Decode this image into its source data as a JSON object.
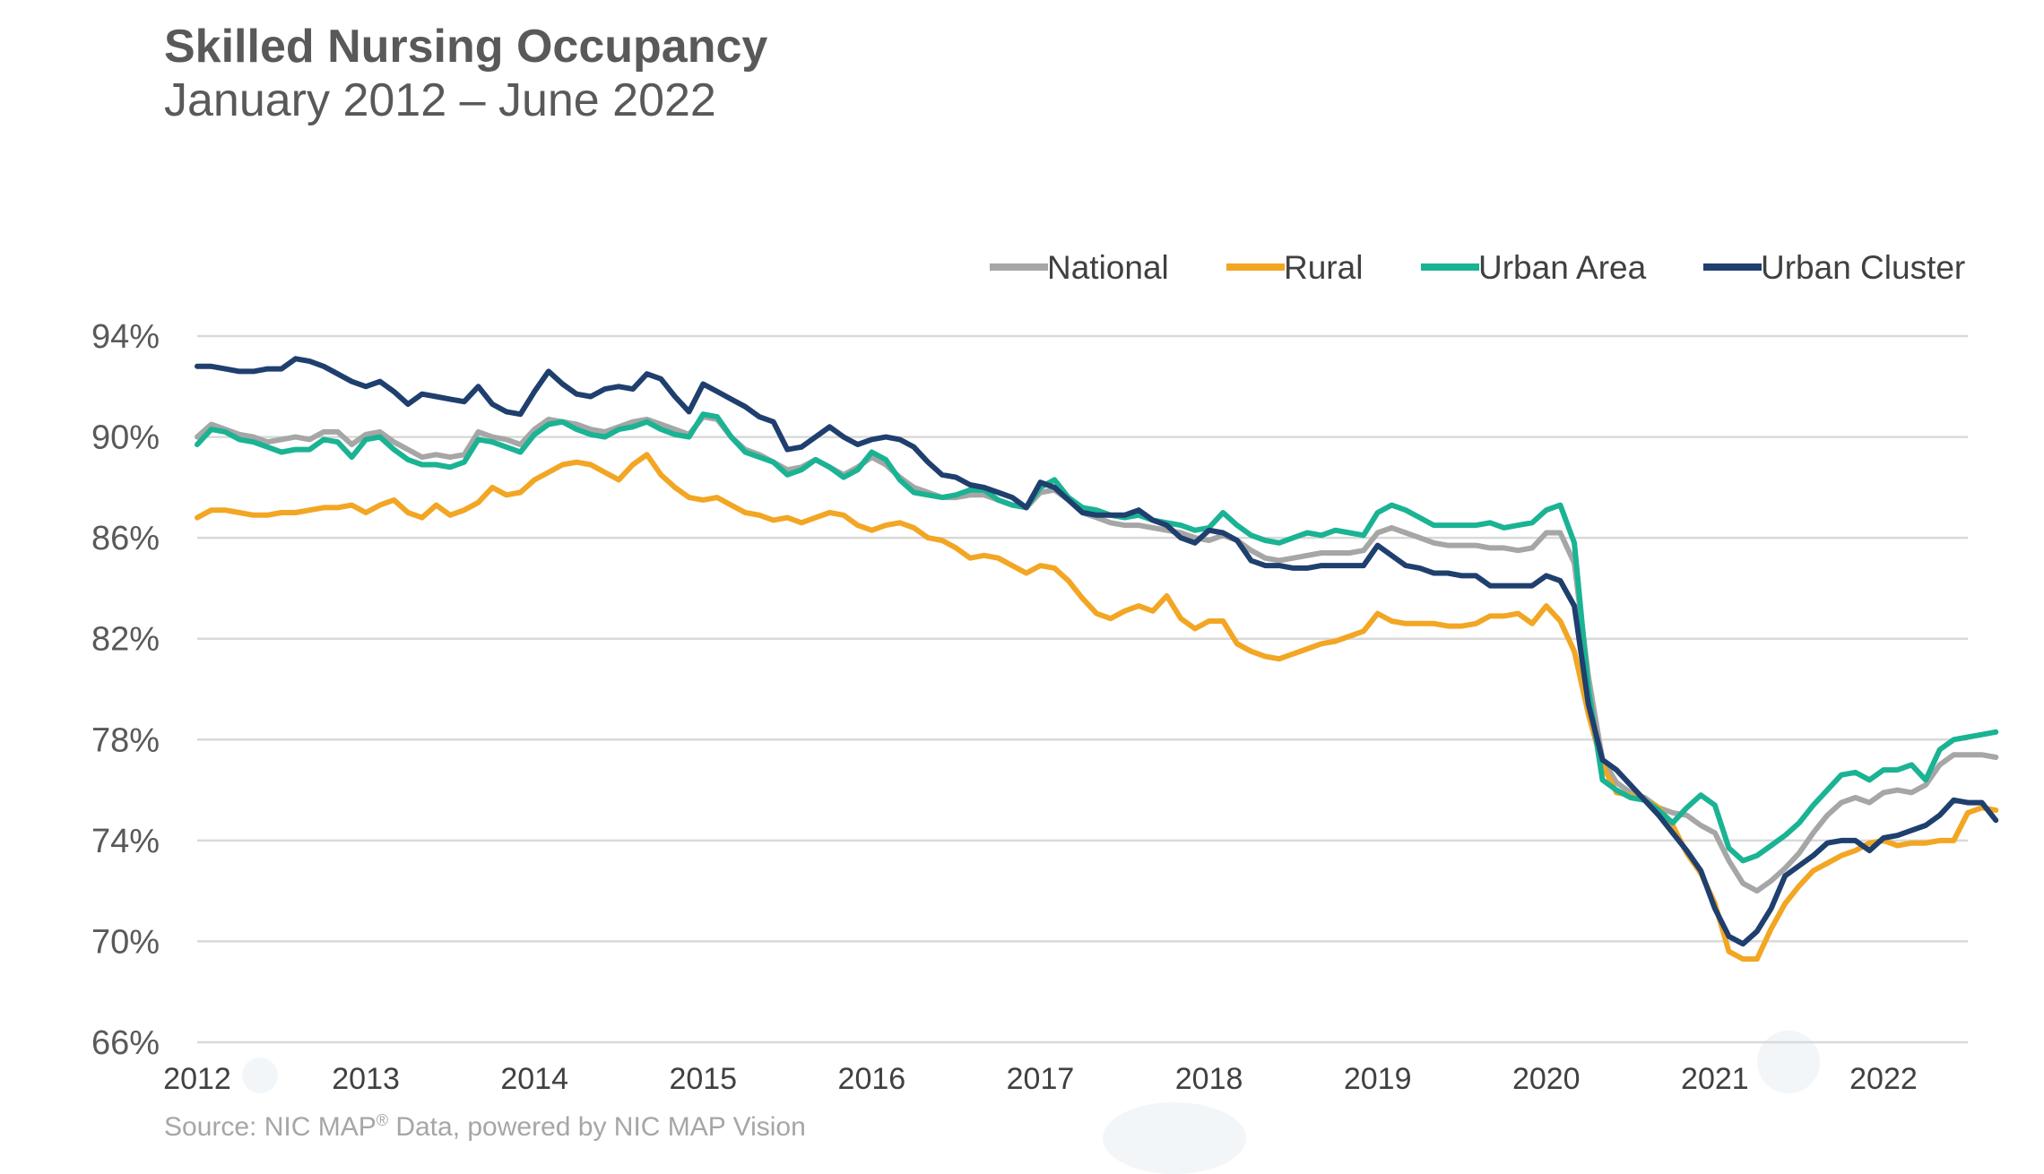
{
  "chart_data": {
    "type": "line",
    "title": "Skilled Nursing Occupancy",
    "subtitle": "January 2012 – June 2022",
    "xlabel": "",
    "ylabel": "",
    "ylim": [
      66,
      94
    ],
    "y_ticks": [
      "66%",
      "70%",
      "74%",
      "78%",
      "82%",
      "86%",
      "90%",
      "94%"
    ],
    "x_ticks": [
      "2012",
      "2013",
      "2014",
      "2015",
      "2016",
      "2017",
      "2018",
      "2019",
      "2020",
      "2021",
      "2022"
    ],
    "legend_position": "top-right",
    "source": "Source: NIC MAP",
    "source_sup": "®",
    "source_rest": " Data, powered by NIC MAP Vision",
    "x_start": 2012.0,
    "x_step": 0.0833333,
    "series": [
      {
        "name": "National",
        "color": "#a6a6a6",
        "values": [
          90.0,
          90.5,
          90.3,
          90.1,
          90.0,
          89.8,
          89.9,
          90.0,
          89.9,
          90.2,
          90.2,
          89.7,
          90.1,
          90.2,
          89.8,
          89.5,
          89.2,
          89.3,
          89.2,
          89.3,
          90.2,
          90.0,
          89.9,
          89.7,
          90.3,
          90.7,
          90.6,
          90.5,
          90.3,
          90.2,
          90.4,
          90.6,
          90.7,
          90.5,
          90.3,
          90.1,
          90.8,
          90.7,
          90.0,
          89.5,
          89.3,
          89.0,
          88.7,
          88.8,
          89.1,
          88.8,
          88.5,
          88.8,
          89.2,
          88.9,
          88.4,
          88.0,
          87.8,
          87.6,
          87.6,
          87.7,
          87.7,
          87.5,
          87.3,
          87.2,
          87.8,
          87.9,
          87.5,
          87.0,
          86.8,
          86.6,
          86.5,
          86.5,
          86.4,
          86.3,
          86.2,
          86.0,
          85.9,
          86.1,
          85.9,
          85.5,
          85.2,
          85.1,
          85.2,
          85.3,
          85.4,
          85.4,
          85.4,
          85.5,
          86.2,
          86.4,
          86.2,
          86.0,
          85.8,
          85.7,
          85.7,
          85.7,
          85.6,
          85.6,
          85.5,
          85.6,
          86.2,
          86.2,
          85.0,
          80.5,
          77.2,
          76.3,
          75.9,
          75.7,
          75.3,
          75.1,
          75.0,
          74.6,
          74.3,
          73.2,
          72.3,
          72.0,
          72.4,
          72.9,
          73.5,
          74.3,
          75.0,
          75.5,
          75.7,
          75.5,
          75.9,
          76.0,
          75.9,
          76.2,
          77.0,
          77.4,
          77.4,
          77.4,
          77.3
        ]
      },
      {
        "name": "Rural",
        "color": "#f2a623",
        "values": [
          86.8,
          87.1,
          87.1,
          87.0,
          86.9,
          86.9,
          87.0,
          87.0,
          87.1,
          87.2,
          87.2,
          87.3,
          87.0,
          87.3,
          87.5,
          87.0,
          86.8,
          87.3,
          86.9,
          87.1,
          87.4,
          88.0,
          87.7,
          87.8,
          88.3,
          88.6,
          88.9,
          89.0,
          88.9,
          88.6,
          88.3,
          88.9,
          89.3,
          88.5,
          88.0,
          87.6,
          87.5,
          87.6,
          87.3,
          87.0,
          86.9,
          86.7,
          86.8,
          86.6,
          86.8,
          87.0,
          86.9,
          86.5,
          86.3,
          86.5,
          86.6,
          86.4,
          86.0,
          85.9,
          85.6,
          85.2,
          85.3,
          85.2,
          84.9,
          84.6,
          84.9,
          84.8,
          84.3,
          83.6,
          83.0,
          82.8,
          83.1,
          83.3,
          83.1,
          83.7,
          82.8,
          82.4,
          82.7,
          82.7,
          81.8,
          81.5,
          81.3,
          81.2,
          81.4,
          81.6,
          81.8,
          81.9,
          82.1,
          82.3,
          83.0,
          82.7,
          82.6,
          82.6,
          82.6,
          82.5,
          82.5,
          82.6,
          82.9,
          82.9,
          83.0,
          82.6,
          83.3,
          82.7,
          81.5,
          79.0,
          77.0,
          75.9,
          75.8,
          75.6,
          75.3,
          74.6,
          73.5,
          72.7,
          71.5,
          69.6,
          69.3,
          69.3,
          70.5,
          71.5,
          72.2,
          72.8,
          73.1,
          73.4,
          73.6,
          73.9,
          74.0,
          73.8,
          73.9,
          73.9,
          74.0,
          74.0,
          75.1,
          75.3,
          75.2
        ]
      },
      {
        "name": "Urban Area",
        "color": "#1ab394",
        "values": [
          89.7,
          90.3,
          90.2,
          89.9,
          89.8,
          89.6,
          89.4,
          89.5,
          89.5,
          89.9,
          89.8,
          89.2,
          89.9,
          90.0,
          89.5,
          89.1,
          88.9,
          88.9,
          88.8,
          89.0,
          89.9,
          89.8,
          89.6,
          89.4,
          90.1,
          90.5,
          90.6,
          90.3,
          90.1,
          90.0,
          90.3,
          90.4,
          90.6,
          90.3,
          90.1,
          90.0,
          90.9,
          90.8,
          90.0,
          89.4,
          89.2,
          89.0,
          88.5,
          88.7,
          89.1,
          88.8,
          88.4,
          88.7,
          89.4,
          89.1,
          88.3,
          87.8,
          87.7,
          87.6,
          87.7,
          87.9,
          87.9,
          87.5,
          87.3,
          87.2,
          88.0,
          88.3,
          87.6,
          87.2,
          87.1,
          86.9,
          86.8,
          86.9,
          86.7,
          86.6,
          86.5,
          86.3,
          86.4,
          87.0,
          86.5,
          86.1,
          85.9,
          85.8,
          86.0,
          86.2,
          86.1,
          86.3,
          86.2,
          86.1,
          87.0,
          87.3,
          87.1,
          86.8,
          86.5,
          86.5,
          86.5,
          86.5,
          86.6,
          86.4,
          86.5,
          86.6,
          87.1,
          87.3,
          85.8,
          80.0,
          76.4,
          76.0,
          75.7,
          75.6,
          75.2,
          74.7,
          75.3,
          75.8,
          75.4,
          73.7,
          73.2,
          73.4,
          73.8,
          74.2,
          74.7,
          75.4,
          76.0,
          76.6,
          76.7,
          76.4,
          76.8,
          76.8,
          77.0,
          76.4,
          77.6,
          78.0,
          78.1,
          78.2,
          78.3
        ]
      },
      {
        "name": "Urban Cluster",
        "color": "#1f3f6e",
        "values": [
          92.8,
          92.8,
          92.7,
          92.6,
          92.6,
          92.7,
          92.7,
          93.1,
          93.0,
          92.8,
          92.5,
          92.2,
          92.0,
          92.2,
          91.8,
          91.3,
          91.7,
          91.6,
          91.5,
          91.4,
          92.0,
          91.3,
          91.0,
          90.9,
          91.8,
          92.6,
          92.1,
          91.7,
          91.6,
          91.9,
          92.0,
          91.9,
          92.5,
          92.3,
          91.6,
          91.0,
          92.1,
          91.8,
          91.5,
          91.2,
          90.8,
          90.6,
          89.5,
          89.6,
          90.0,
          90.4,
          90.0,
          89.7,
          89.9,
          90.0,
          89.9,
          89.6,
          89.0,
          88.5,
          88.4,
          88.1,
          88.0,
          87.8,
          87.6,
          87.2,
          88.2,
          88.0,
          87.5,
          87.0,
          86.9,
          86.9,
          86.9,
          87.1,
          86.7,
          86.5,
          86.0,
          85.8,
          86.3,
          86.2,
          85.9,
          85.1,
          84.9,
          84.9,
          84.8,
          84.8,
          84.9,
          84.9,
          84.9,
          84.9,
          85.7,
          85.3,
          84.9,
          84.8,
          84.6,
          84.6,
          84.5,
          84.5,
          84.1,
          84.1,
          84.1,
          84.1,
          84.5,
          84.3,
          83.3,
          79.4,
          77.2,
          76.8,
          76.2,
          75.6,
          75.0,
          74.3,
          73.6,
          72.8,
          71.3,
          70.2,
          69.9,
          70.4,
          71.3,
          72.6,
          73.0,
          73.4,
          73.9,
          74.0,
          74.0,
          73.6,
          74.1,
          74.2,
          74.4,
          74.6,
          75.0,
          75.6,
          75.5,
          75.5,
          74.8
        ]
      }
    ]
  }
}
